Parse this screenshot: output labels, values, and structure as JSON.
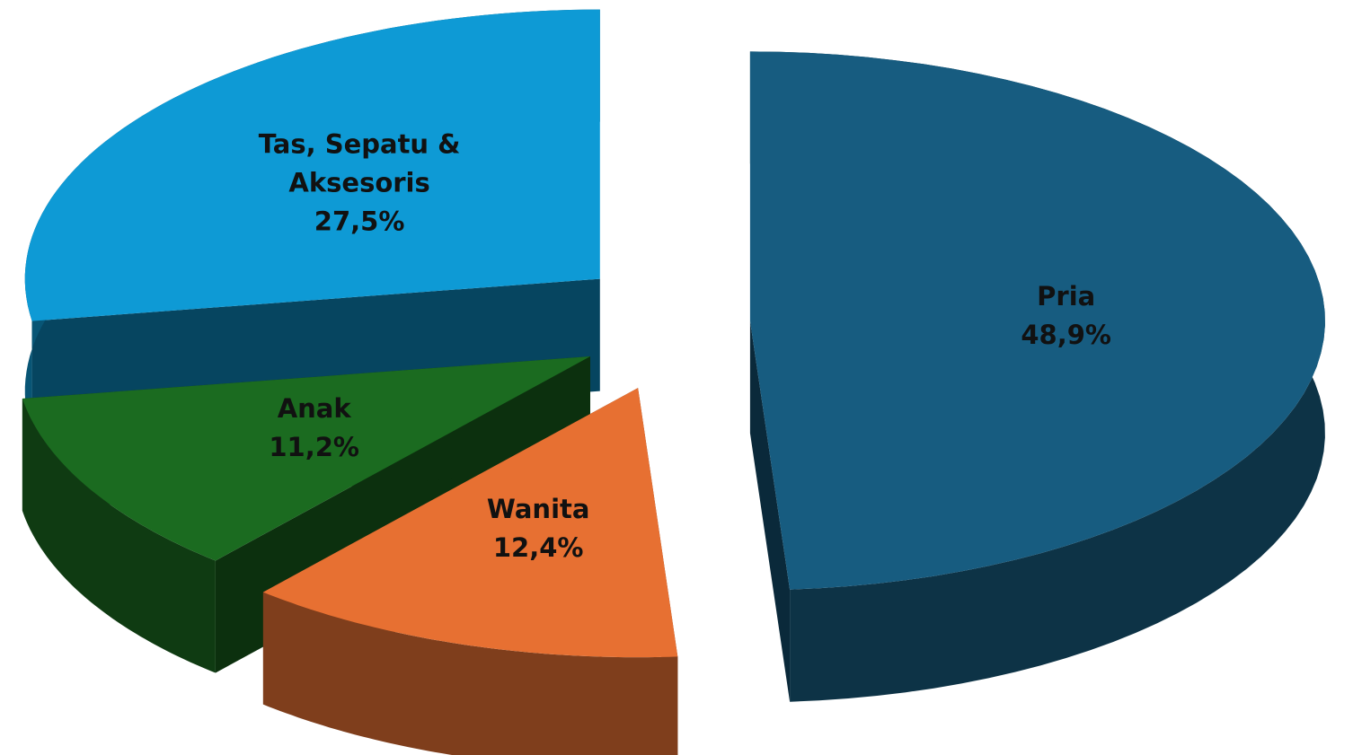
{
  "chart_data": {
    "type": "pie",
    "categories": [
      "Pria",
      "Wanita",
      "Anak",
      "Tas, Sepatu & Aksesoris"
    ],
    "values": [
      48.9,
      12.4,
      11.2,
      27.5
    ],
    "value_labels": [
      "48,9%",
      "12,4%",
      "11,2%",
      "27,5%"
    ],
    "colors": [
      "#175c80",
      "#e77032",
      "#1b6b20",
      "#0e9ad5"
    ]
  }
}
